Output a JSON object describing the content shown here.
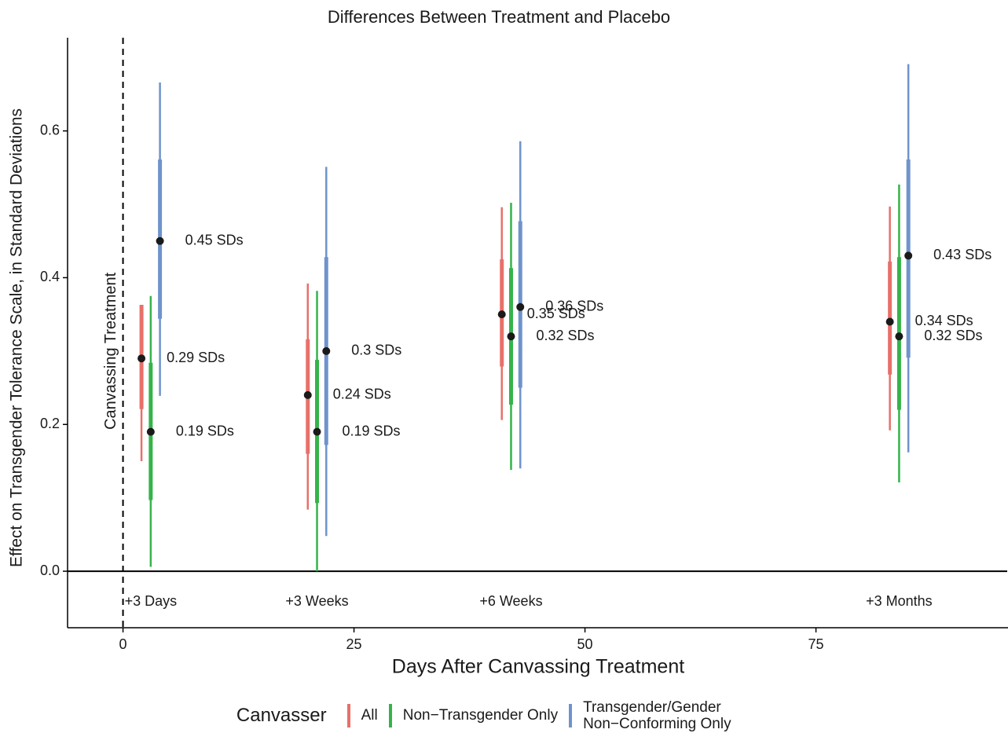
{
  "chart_data": {
    "type": "pointrange",
    "title": "Differences Between Treatment and Placebo",
    "x_label": "Days After Canvassing Treatment",
    "y_label": "Effect on Transgender Tolerance Scale, in Standard Deviations",
    "xlim": [
      -6,
      95.7
    ],
    "ylim": [
      -0.077,
      0.727
    ],
    "xticks": [
      0,
      25,
      50,
      75
    ],
    "yticks": [
      {
        "value": 0,
        "label": "0.0"
      },
      0.2,
      0.4,
      0.6
    ],
    "vline": 0,
    "vline_label": "Canvassing Treatment",
    "hline": 0,
    "groups": [
      "+3 Days",
      "+3 Weeks",
      "+6 Weeks",
      "+3 Months"
    ],
    "legend_title": "Canvasser",
    "legend": "bottom",
    "series": [
      {
        "name": "All",
        "color": "#e8706a",
        "x": [
          2,
          20,
          41,
          83
        ],
        "values": [
          0.29,
          0.24,
          0.35,
          0.34
        ],
        "value_labels": [
          "0.29 SDs",
          "0.24 SDs",
          "0.35 SDs",
          "0.34 SDs"
        ],
        "inner_low": [
          0.221,
          0.16,
          0.279,
          0.268
        ],
        "inner_high": [
          0.363,
          0.316,
          0.425,
          0.422
        ],
        "low": [
          0.15,
          0.084,
          0.206,
          0.192
        ],
        "high": [
          0.315,
          0.392,
          0.496,
          0.497
        ]
      },
      {
        "name": "Non−Transgender Only",
        "color": "#35b34a",
        "x": [
          3,
          21,
          42,
          84
        ],
        "values": [
          0.19,
          0.19,
          0.32,
          0.32
        ],
        "value_labels": [
          "0.19 SDs",
          "0.19 SDs",
          "0.32 SDs",
          "0.32 SDs"
        ],
        "inner_low": [
          0.097,
          0.093,
          0.227,
          0.22
        ],
        "inner_high": [
          0.284,
          0.288,
          0.413,
          0.428
        ],
        "low": [
          0.006,
          0.0,
          0.138,
          0.121
        ],
        "high": [
          0.375,
          0.382,
          0.502,
          0.527
        ]
      },
      {
        "name": "Transgender/Gender Non−Conforming Only",
        "color": "#6f93cc",
        "x": [
          4,
          22,
          43,
          85
        ],
        "values": [
          0.45,
          0.3,
          0.36,
          0.43
        ],
        "value_labels": [
          "0.45 SDs",
          "0.3 SDs",
          "0.36 SDs",
          "0.43 SDs"
        ],
        "inner_low": [
          0.344,
          0.172,
          0.25,
          0.291
        ],
        "inner_high": [
          0.561,
          0.428,
          0.477,
          0.561
        ],
        "low": [
          0.239,
          0.048,
          0.14,
          0.162
        ],
        "high": [
          0.666,
          0.551,
          0.586,
          0.691
        ]
      }
    ]
  }
}
